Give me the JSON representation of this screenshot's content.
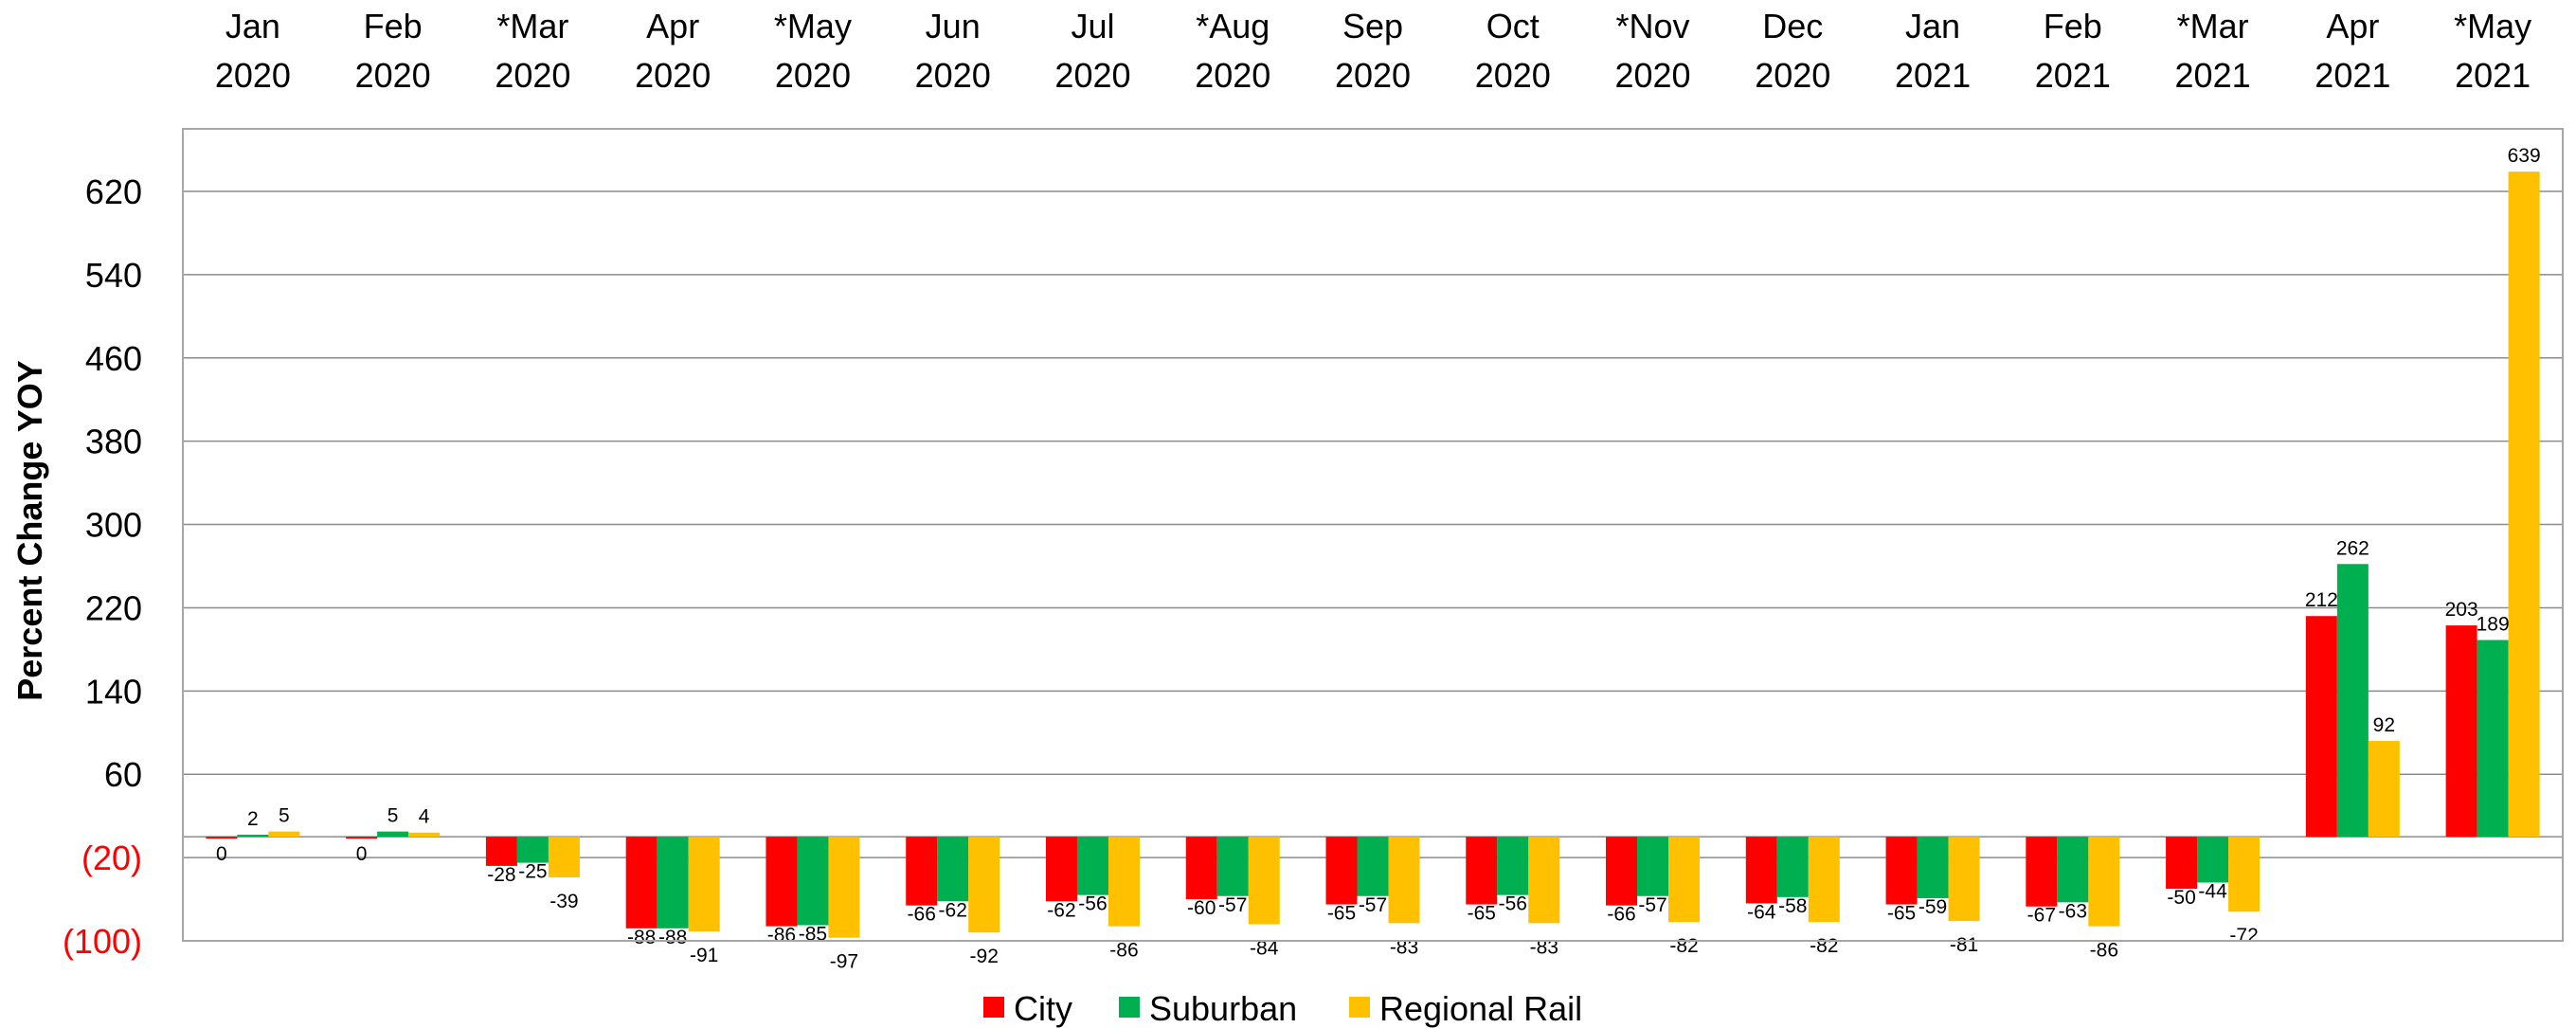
{
  "chart_data": {
    "type": "bar",
    "categories": [
      [
        "Jan",
        "2020"
      ],
      [
        "Feb",
        "2020"
      ],
      [
        "*Mar",
        "2020"
      ],
      [
        "Apr",
        "2020"
      ],
      [
        "*May",
        "2020"
      ],
      [
        "Jun",
        "2020"
      ],
      [
        "Jul",
        "2020"
      ],
      [
        "*Aug",
        "2020"
      ],
      [
        "Sep",
        "2020"
      ],
      [
        "Oct",
        "2020"
      ],
      [
        "*Nov",
        "2020"
      ],
      [
        "Dec",
        "2020"
      ],
      [
        "Jan",
        "2021"
      ],
      [
        "Feb",
        "2021"
      ],
      [
        "*Mar",
        "2021"
      ],
      [
        "Apr",
        "2021"
      ],
      [
        "*May",
        "2021"
      ]
    ],
    "series": [
      {
        "name": "City",
        "color": "#ff0000",
        "values": [
          0,
          0,
          -28,
          -88,
          -86,
          -66,
          -62,
          -60,
          -65,
          -65,
          -66,
          -64,
          -65,
          -67,
          -50,
          212,
          203
        ]
      },
      {
        "name": "Suburban",
        "color": "#00b050",
        "values": [
          2,
          5,
          -25,
          -88,
          -85,
          -62,
          -56,
          -57,
          -57,
          -56,
          -57,
          -58,
          -59,
          -63,
          -44,
          262,
          189
        ]
      },
      {
        "name": "Regional Rail",
        "color": "#ffc000",
        "values": [
          5,
          4,
          -39,
          -91,
          -97,
          -92,
          -86,
          -84,
          -83,
          -83,
          -82,
          -82,
          -81,
          -86,
          -72,
          92,
          639
        ]
      }
    ],
    "ylabel": "Percent Change YOY",
    "ylim": [
      -100,
      680
    ],
    "yticks": [
      {
        "value": 620,
        "label": "620",
        "color": "#000000"
      },
      {
        "value": 540,
        "label": "540",
        "color": "#000000"
      },
      {
        "value": 460,
        "label": "460",
        "color": "#000000"
      },
      {
        "value": 380,
        "label": "380",
        "color": "#000000"
      },
      {
        "value": 300,
        "label": "300",
        "color": "#000000"
      },
      {
        "value": 220,
        "label": "220",
        "color": "#000000"
      },
      {
        "value": 140,
        "label": "140",
        "color": "#000000"
      },
      {
        "value": 60,
        "label": "60",
        "color": "#000000"
      },
      {
        "value": -20,
        "label": "(20)",
        "color": "#ff0000"
      },
      {
        "value": -100,
        "label": "(100)",
        "color": "#ff0000"
      }
    ],
    "grid": true,
    "legend": "bottom-center"
  }
}
